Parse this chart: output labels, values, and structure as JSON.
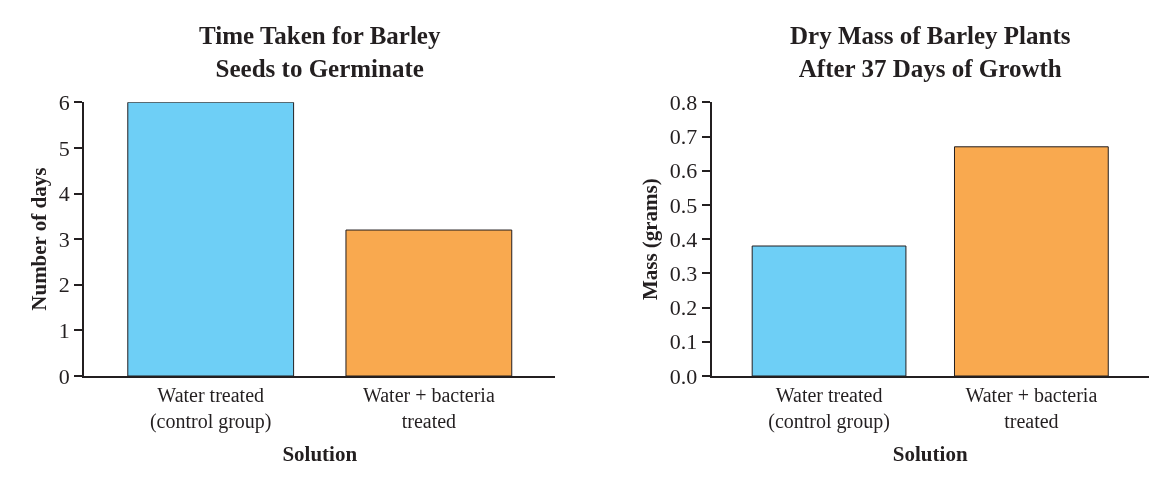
{
  "chart_data": [
    {
      "type": "bar",
      "title": "Time Taken for Barley\nSeeds to Germinate",
      "xlabel": "Solution",
      "ylabel": "Number of days",
      "categories": [
        "Water treated\n(control group)",
        "Water + bacteria\ntreated"
      ],
      "values": [
        6,
        3.2
      ],
      "colors": [
        "#6ecff6",
        "#f9a94f"
      ],
      "ylim": [
        0,
        6
      ],
      "yticks": [
        0,
        1,
        2,
        3,
        4,
        5,
        6
      ]
    },
    {
      "type": "bar",
      "title": "Dry Mass of Barley Plants\nAfter 37 Days of Growth",
      "xlabel": "Solution",
      "ylabel": "Mass (grams)",
      "categories": [
        "Water treated\n(control group)",
        "Water + bacteria\ntreated"
      ],
      "values": [
        0.38,
        0.67
      ],
      "colors": [
        "#6ecff6",
        "#f9a94f"
      ],
      "ylim": [
        0,
        0.8
      ],
      "yticks": [
        {
          "value": 0,
          "label": "0.0"
        },
        0.1,
        0.2,
        0.3,
        0.4,
        0.5,
        0.6,
        0.7,
        0.8
      ]
    }
  ]
}
